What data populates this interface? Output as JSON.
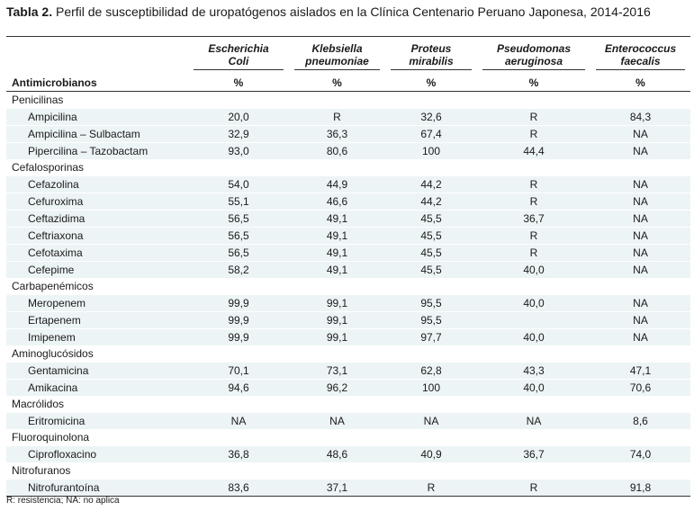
{
  "caption": {
    "label": "Tabla 2.",
    "text": " Perfil de susceptibilidad de uropatógenos aislados en la Clínica Centenario Peruano Japonesa, 2014-2016"
  },
  "header": {
    "first_col": "Antimicrobianos",
    "organisms": [
      {
        "line1": "Escherichia",
        "line2": "Coli"
      },
      {
        "line1": "Klebsiella",
        "line2": "pneumoniae"
      },
      {
        "line1": "Proteus",
        "line2": "mirabilis"
      },
      {
        "line1": "Pseudomonas",
        "line2": "aeruginosa"
      },
      {
        "line1": "Enterococcus",
        "line2": "faecalis"
      }
    ],
    "unit": "%"
  },
  "rows": [
    {
      "type": "category",
      "name": "Penicilinas"
    },
    {
      "type": "drug",
      "name": "Ampicilina",
      "values": [
        "20,0",
        "R",
        "32,6",
        "R",
        "84,3"
      ]
    },
    {
      "type": "drug",
      "name": "Ampicilina – Sulbactam",
      "values": [
        "32,9",
        "36,3",
        "67,4",
        "R",
        "NA"
      ]
    },
    {
      "type": "drug",
      "name": "Pipercilina – Tazobactam",
      "values": [
        "93,0",
        "80,6",
        "100",
        "44,4",
        "NA"
      ]
    },
    {
      "type": "category",
      "name": "Cefalosporinas"
    },
    {
      "type": "drug",
      "name": "Cefazolina",
      "values": [
        "54,0",
        "44,9",
        "44,2",
        "R",
        "NA"
      ]
    },
    {
      "type": "drug",
      "name": "Cefuroxima",
      "values": [
        "55,1",
        "46,6",
        "44,2",
        "R",
        "NA"
      ]
    },
    {
      "type": "drug",
      "name": "Ceftazidima",
      "values": [
        "56,5",
        "49,1",
        "45,5",
        "36,7",
        "NA"
      ]
    },
    {
      "type": "drug",
      "name": "Ceftriaxona",
      "values": [
        "56,5",
        "49,1",
        "45,5",
        "R",
        "NA"
      ]
    },
    {
      "type": "drug",
      "name": "Cefotaxima",
      "values": [
        "56,5",
        "49,1",
        "45,5",
        "R",
        "NA"
      ]
    },
    {
      "type": "drug",
      "name": "Cefepime",
      "values": [
        "58,2",
        "49,1",
        "45,5",
        "40,0",
        "NA"
      ]
    },
    {
      "type": "category",
      "name": "Carbapenémicos"
    },
    {
      "type": "drug",
      "name": "Meropenem",
      "values": [
        "99,9",
        "99,1",
        "95,5",
        "40,0",
        "NA"
      ]
    },
    {
      "type": "drug",
      "name": "Ertapenem",
      "values": [
        "99,9",
        "99,1",
        "95,5",
        "",
        "NA"
      ]
    },
    {
      "type": "drug",
      "name": "Imipenem",
      "values": [
        "99,9",
        "99,1",
        "97,7",
        "40,0",
        "NA"
      ]
    },
    {
      "type": "category",
      "name": "Aminoglucósidos"
    },
    {
      "type": "drug",
      "name": "Gentamicina",
      "values": [
        "70,1",
        "73,1",
        "62,8",
        "43,3",
        "47,1"
      ]
    },
    {
      "type": "drug",
      "name": "Amikacina",
      "values": [
        "94,6",
        "96,2",
        "100",
        "40,0",
        "70,6"
      ]
    },
    {
      "type": "category",
      "name": "Macrólidos"
    },
    {
      "type": "drug",
      "name": "Eritromicina",
      "values": [
        "NA",
        "NA",
        "NA",
        "NA",
        "8,6"
      ]
    },
    {
      "type": "category",
      "name": "Fluoroquinolona"
    },
    {
      "type": "drug",
      "name": "Ciprofloxacino",
      "values": [
        "36,8",
        "48,6",
        "40,9",
        "36,7",
        "74,0"
      ]
    },
    {
      "type": "category",
      "name": "Nitrofuranos"
    },
    {
      "type": "drug",
      "name": "Nitrofurantoína",
      "values": [
        "83,6",
        "37,1",
        "R",
        "R",
        "91,8"
      ]
    }
  ],
  "footnote": "R: resistencia; NA: no aplica",
  "colors": {
    "row_shading": "#edf4f6",
    "rule": "#333333"
  }
}
